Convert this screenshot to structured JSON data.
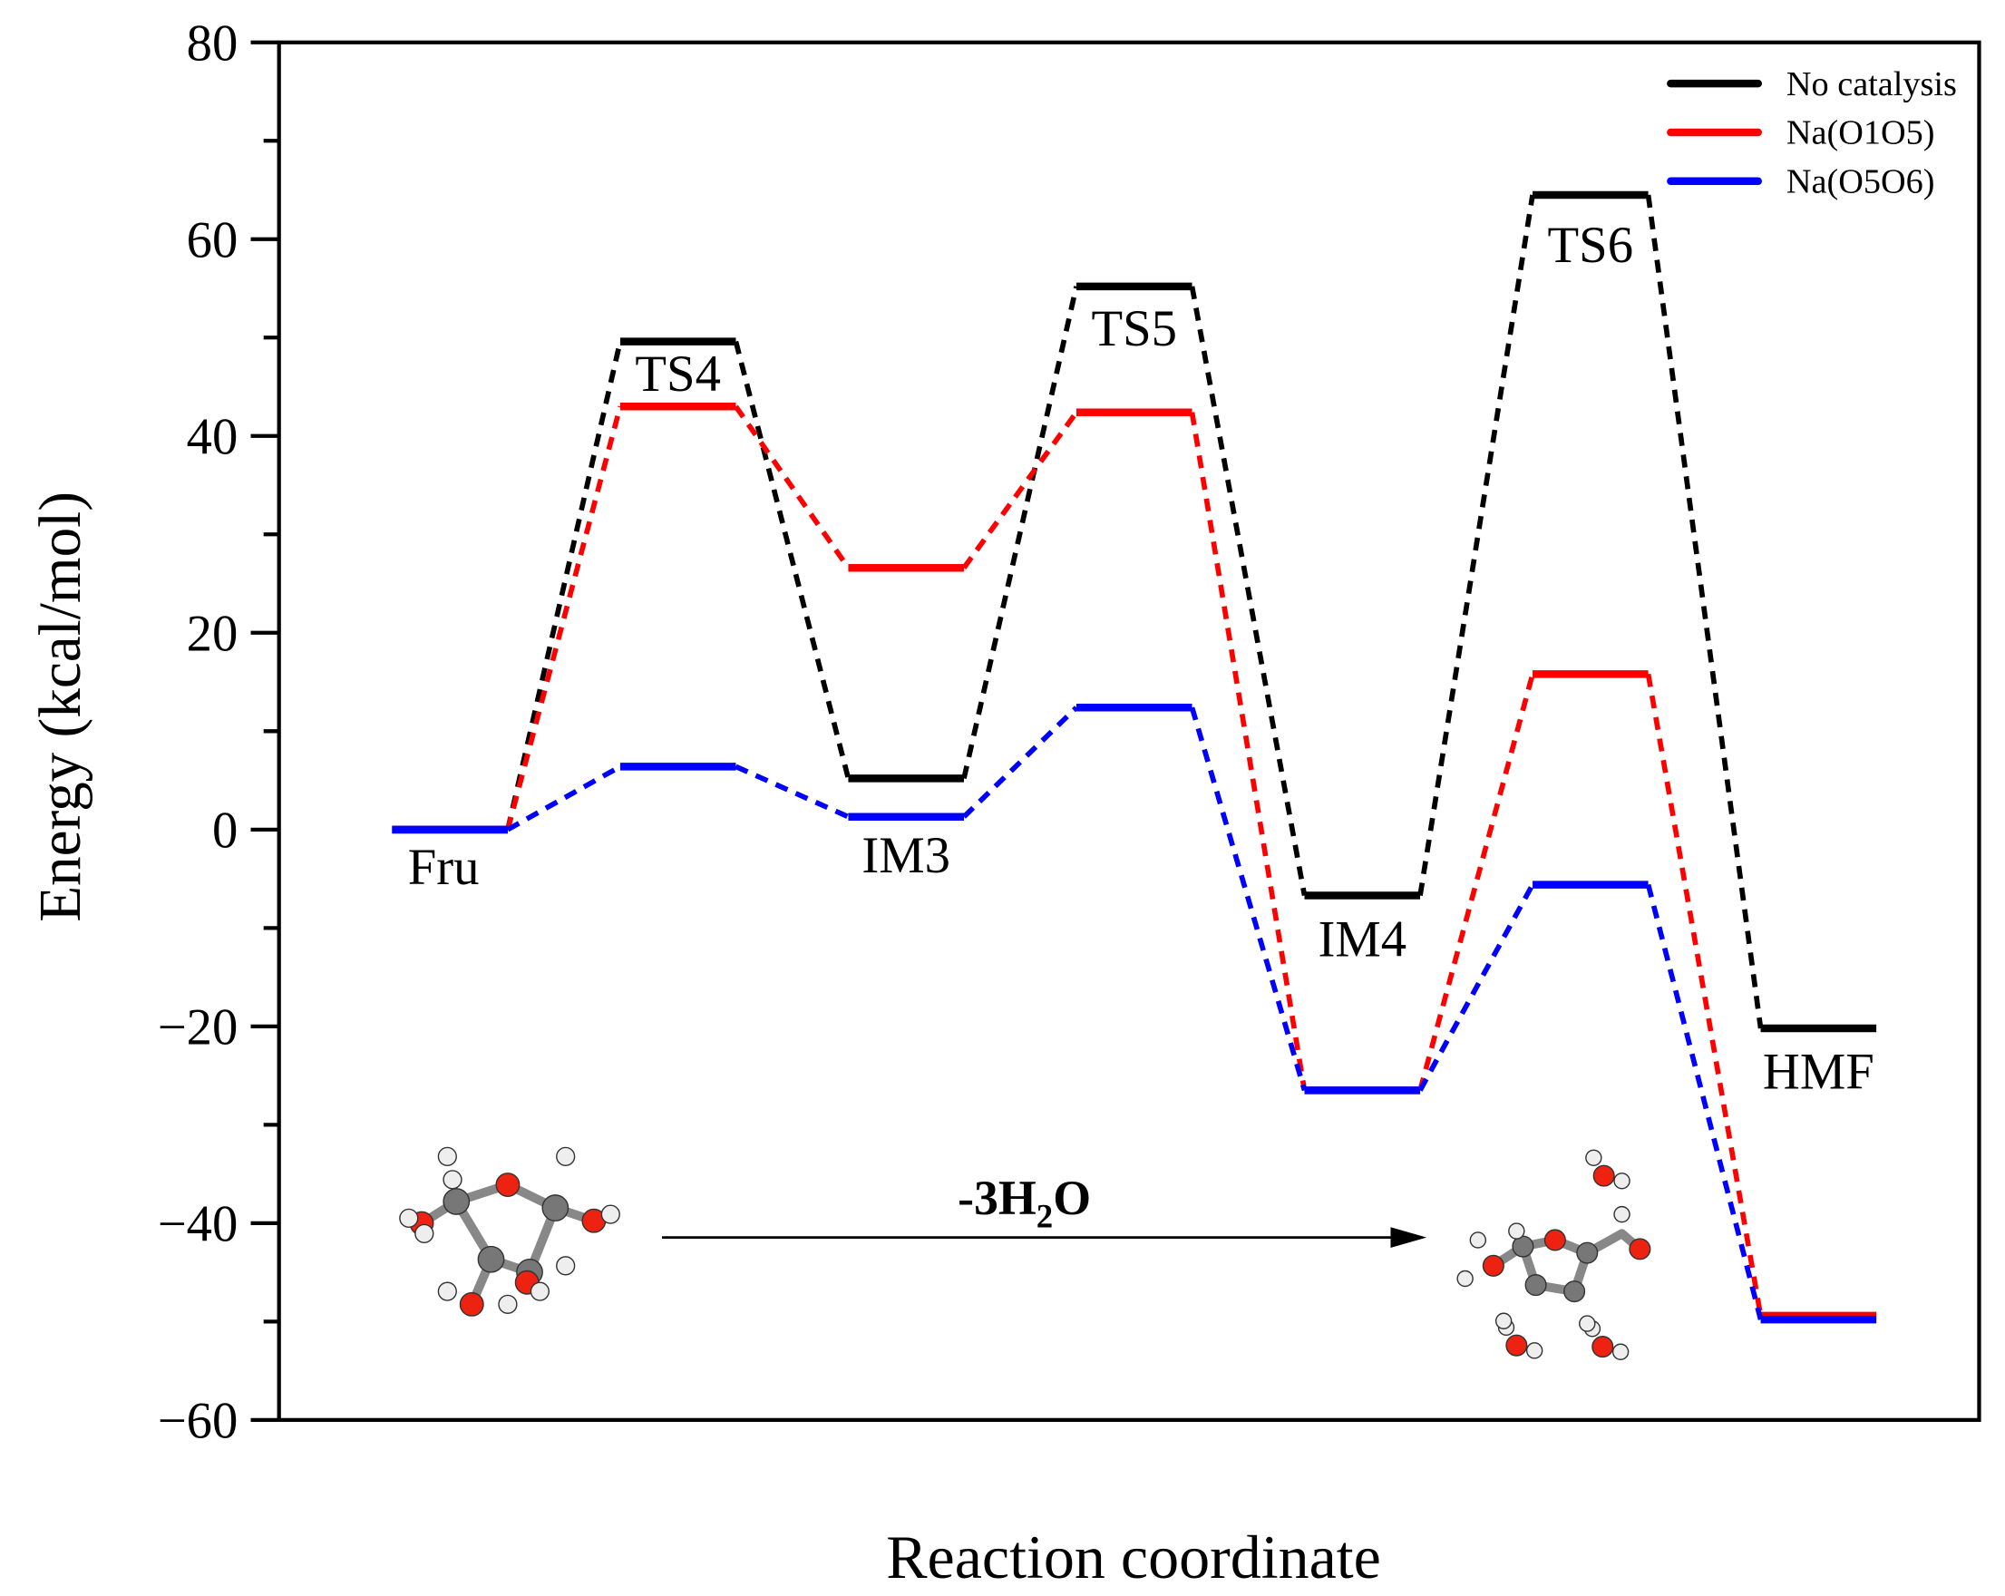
{
  "chart_data": {
    "type": "line",
    "subtype": "energy-profile",
    "xlabel": "Reaction coordinate",
    "ylabel": "Energy (kcal/mol)",
    "ylim": [
      -60,
      80
    ],
    "yticks": [
      -60,
      -40,
      -20,
      0,
      20,
      40,
      60,
      80
    ],
    "ytick_labels": [
      "−60",
      "−40",
      "−20",
      "0",
      "20",
      "40",
      "60",
      "80"
    ],
    "categories": [
      "Fru",
      "TS4",
      "IM3",
      "TS5",
      "IM4",
      "TS6",
      "HMF"
    ],
    "legend_position": "top-right",
    "series": [
      {
        "name": "No catalysis",
        "color": "#000000",
        "values": [
          0,
          49.6,
          5.2,
          55.2,
          -6.7,
          64.5,
          -20.2
        ]
      },
      {
        "name": "Na(O1O5)",
        "color": "#ff0000",
        "values": [
          0,
          43.0,
          26.6,
          42.4,
          -26.5,
          15.8,
          -49.4
        ]
      },
      {
        "name": "Na(O5O6)",
        "color": "#0000ff",
        "values": [
          0,
          6.4,
          1.3,
          12.4,
          -26.5,
          -5.6,
          -49.8
        ]
      }
    ],
    "annotation": {
      "text": "-3H",
      "sub": "2",
      "tail": "O"
    }
  }
}
